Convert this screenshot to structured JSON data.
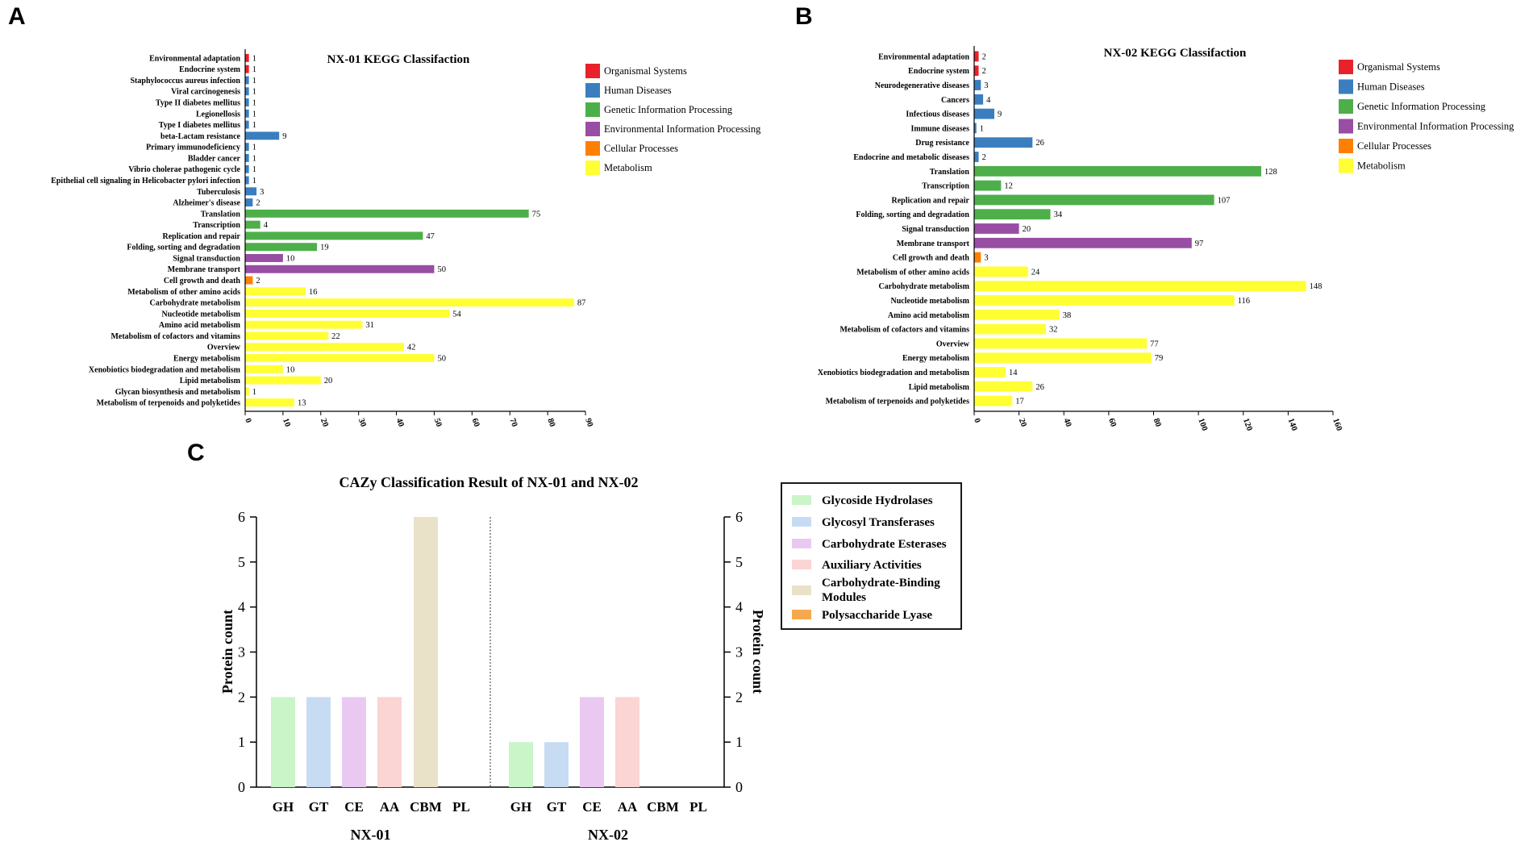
{
  "panels": {
    "a": "A",
    "b": "B",
    "c": "C"
  },
  "kegg_legend": [
    {
      "name": "Organismal Systems",
      "color": "#e8212b"
    },
    {
      "name": "Human Diseases",
      "color": "#3a7ebf"
    },
    {
      "name": "Genetic Information Processing",
      "color": "#4daf4a"
    },
    {
      "name": "Environmental Information Processing",
      "color": "#984ea3"
    },
    {
      "name": "Cellular Processes",
      "color": "#ff7f00"
    },
    {
      "name": "Metabolism",
      "color": "#ffff33"
    }
  ],
  "cazy_legend": [
    {
      "name": "Glycoside Hydrolases",
      "color": "#c9f5c9"
    },
    {
      "name": "Glycosyl Transferases",
      "color": "#c7dcf2"
    },
    {
      "name": "Carbohydrate Esterases",
      "color": "#e9c9f2"
    },
    {
      "name": "Auxiliary Activities",
      "color": "#fbd4d4"
    },
    {
      "name": "Carbohydrate-Binding Modules",
      "color": "#e9e2c8"
    },
    {
      "name": "Polysaccharide Lyase",
      "color": "#f6a84f"
    }
  ],
  "chart_data": [
    {
      "type": "bar",
      "orientation": "horizontal",
      "title": "NX-01 KEGG Classifaction",
      "xlim": [
        0,
        90
      ],
      "xticks": [
        0,
        10,
        20,
        30,
        40,
        50,
        60,
        70,
        80,
        90
      ],
      "categories": [
        "Environmental adaptation",
        "Endocrine system",
        "Staphylococcus aureus infection",
        "Viral carcinogenesis",
        "Type II diabetes mellitus",
        "Legionellosis",
        "Type I diabetes mellitus",
        "beta-Lactam resistance",
        "Primary immunodeficiency",
        "Bladder cancer",
        "Vibrio cholerae pathogenic cycle",
        "Epithelial cell signaling in Helicobacter pylori infection",
        "Tuberculosis",
        "Alzheimer's disease",
        "Translation",
        "Transcription",
        "Replication and repair",
        "Folding, sorting and degradation",
        "Signal transduction",
        "Membrane transport",
        "Cell growth and death",
        "Metabolism of other amino acids",
        "Carbohydrate metabolism",
        "Nucleotide metabolism",
        "Amino acid metabolism",
        "Metabolism of cofactors and vitamins",
        "Overview",
        "Energy metabolism",
        "Xenobiotics biodegradation and metabolism",
        "Lipid metabolism",
        "Glycan biosynthesis and metabolism",
        "Metabolism of terpenoids and polyketides"
      ],
      "values": [
        1,
        1,
        1,
        1,
        1,
        1,
        1,
        9,
        1,
        1,
        1,
        1,
        3,
        2,
        75,
        4,
        47,
        19,
        10,
        50,
        2,
        16,
        87,
        54,
        31,
        22,
        42,
        50,
        10,
        20,
        1,
        13
      ],
      "groups": [
        0,
        0,
        1,
        1,
        1,
        1,
        1,
        1,
        1,
        1,
        1,
        1,
        1,
        1,
        2,
        2,
        2,
        2,
        3,
        3,
        4,
        5,
        5,
        5,
        5,
        5,
        5,
        5,
        5,
        5,
        5,
        5
      ]
    },
    {
      "type": "bar",
      "orientation": "horizontal",
      "title": "NX-02 KEGG Classifaction",
      "xlim": [
        0,
        160
      ],
      "xticks": [
        0,
        20,
        40,
        60,
        80,
        100,
        120,
        140,
        160
      ],
      "categories": [
        "Environmental adaptation",
        "Endocrine system",
        "Neurodegenerative diseases",
        "Cancers",
        "Infectious diseases",
        "Immune diseases",
        "Drug resistance",
        "Endocrine and metabolic diseases",
        "Translation",
        "Transcription",
        "Replication and repair",
        "Folding, sorting and degradation",
        "Signal transduction",
        "Membrane transport",
        "Cell growth and death",
        "Metabolism of other amino acids",
        "Carbohydrate metabolism",
        "Nucleotide metabolism",
        "Amino acid metabolism",
        "Metabolism of cofactors and vitamins",
        "Overview",
        "Energy metabolism",
        "Xenobiotics biodegradation and metabolism",
        "Lipid metabolism",
        "Metabolism of terpenoids and polyketides"
      ],
      "values": [
        2,
        2,
        3,
        4,
        9,
        1,
        26,
        2,
        128,
        12,
        107,
        34,
        20,
        97,
        3,
        24,
        148,
        116,
        38,
        32,
        77,
        79,
        14,
        26,
        17
      ],
      "groups": [
        0,
        0,
        1,
        1,
        1,
        1,
        1,
        1,
        2,
        2,
        2,
        2,
        3,
        3,
        4,
        5,
        5,
        5,
        5,
        5,
        5,
        5,
        5,
        5,
        5
      ]
    },
    {
      "type": "bar",
      "title": "CAZy Classification Result of NX-01 and NX-02",
      "ylabel": "Protein count",
      "ylim": [
        0,
        6
      ],
      "yticks": [
        0,
        1,
        2,
        3,
        4,
        5,
        6
      ],
      "categories": [
        "GH",
        "GT",
        "CE",
        "AA",
        "CBM",
        "PL"
      ],
      "series": [
        {
          "name": "NX-01",
          "values": [
            2,
            2,
            2,
            2,
            6,
            0
          ]
        },
        {
          "name": "NX-02",
          "values": [
            1,
            1,
            2,
            2,
            0,
            0
          ]
        }
      ]
    }
  ]
}
